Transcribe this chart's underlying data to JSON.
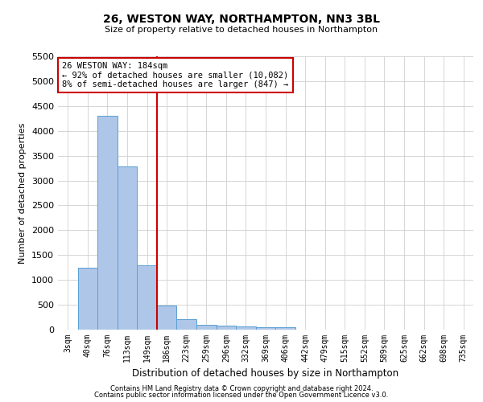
{
  "title1": "26, WESTON WAY, NORTHAMPTON, NN3 3BL",
  "title2": "Size of property relative to detached houses in Northampton",
  "xlabel": "Distribution of detached houses by size in Northampton",
  "ylabel": "Number of detached properties",
  "footer1": "Contains HM Land Registry data © Crown copyright and database right 2024.",
  "footer2": "Contains public sector information licensed under the Open Government Licence v3.0.",
  "annotation_line1": "26 WESTON WAY: 184sqm",
  "annotation_line2": "← 92% of detached houses are smaller (10,082)",
  "annotation_line3": "8% of semi-detached houses are larger (847) →",
  "bar_labels": [
    "3sqm",
    "40sqm",
    "76sqm",
    "113sqm",
    "149sqm",
    "186sqm",
    "223sqm",
    "259sqm",
    "296sqm",
    "332sqm",
    "369sqm",
    "406sqm",
    "442sqm",
    "479sqm",
    "515sqm",
    "552sqm",
    "589sqm",
    "625sqm",
    "662sqm",
    "698sqm",
    "735sqm"
  ],
  "bar_values": [
    0,
    1250,
    4300,
    3280,
    1300,
    480,
    210,
    100,
    85,
    60,
    50,
    50,
    0,
    0,
    0,
    0,
    0,
    0,
    0,
    0,
    0
  ],
  "bar_color": "#aec6e8",
  "bar_edge_color": "#5a9fd4",
  "ylim": [
    0,
    5500
  ],
  "yticks": [
    0,
    500,
    1000,
    1500,
    2000,
    2500,
    3000,
    3500,
    4000,
    4500,
    5000,
    5500
  ],
  "annotation_box_color": "#cc0000",
  "vline_x": 4.5,
  "background_color": "#ffffff",
  "grid_color": "#d0d0d0"
}
